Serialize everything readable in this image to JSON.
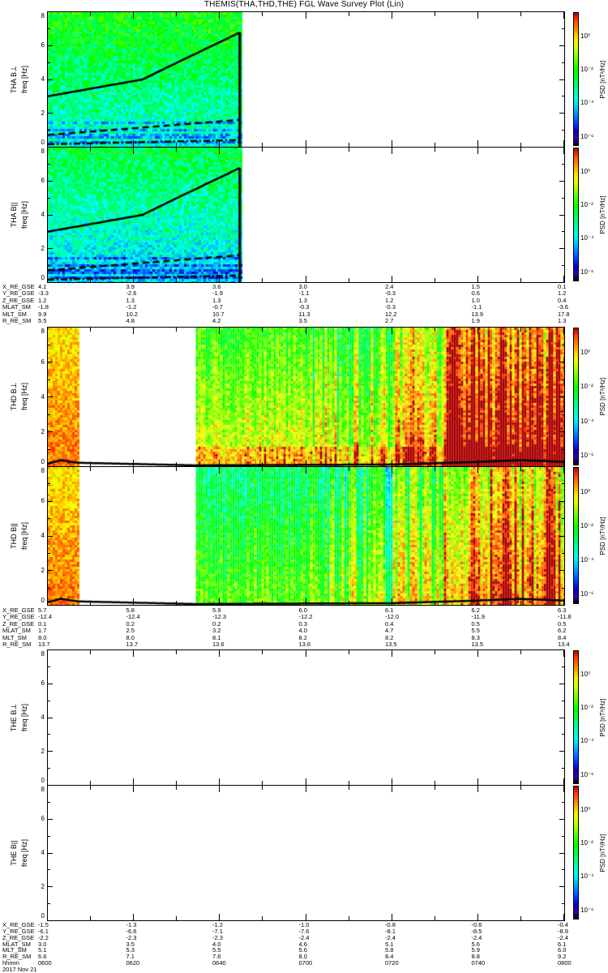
{
  "title": "THEMIS(THA,THD,THE) FGL Wave Survey Plot (Lin)",
  "colorbar": {
    "label": "PSD [nT²/Hz]",
    "tick_labels": [
      "10⁰",
      "10⁻²",
      "10⁻⁴",
      "10⁻⁶"
    ],
    "tick_exponents": [
      0,
      -2,
      -4,
      -6
    ],
    "log_range": [
      -6.6,
      1.5
    ]
  },
  "chart_data": {
    "type": "heatmap",
    "title": "THEMIS(THA,THD,THE) FGL Wave Survey Plot (Lin)",
    "xlabel": "hhmm",
    "x_range_minutes_after_0600": [
      0,
      120
    ],
    "ylim": [
      0,
      8
    ],
    "ytick_labels": [
      "0",
      "2",
      "4",
      "6",
      "8"
    ],
    "panels": [
      {
        "probe": "THA",
        "component": "B⊥",
        "ylabel": "freq [Hz]",
        "label": "THA B⊥",
        "coverage_minutes": [
          [
            0,
            44.7
          ]
        ],
        "style": "tha",
        "lines": {
          "solid": [
            [
              0,
              3.0
            ],
            [
              22,
              4.0
            ],
            [
              30,
              5.0
            ],
            [
              44.7,
              6.8
            ]
          ],
          "dashed": [
            [
              0,
              0.7
            ],
            [
              44.7,
              1.6
            ]
          ],
          "dashdot": [
            [
              0,
              0.15
            ],
            [
              44.7,
              0.4
            ]
          ]
        }
      },
      {
        "probe": "THA",
        "component": "B||",
        "ylabel": "freq [Hz]",
        "label": "THA B||",
        "coverage_minutes": [
          [
            0,
            44.7
          ]
        ],
        "style": "tha",
        "lines": {
          "solid": [
            [
              0,
              3.0
            ],
            [
              22,
              4.0
            ],
            [
              30,
              5.0
            ],
            [
              44.7,
              6.8
            ]
          ],
          "dashed": [
            [
              0,
              0.7
            ],
            [
              44.7,
              1.6
            ]
          ],
          "dashdot": [
            [
              0,
              0.15
            ],
            [
              44.7,
              0.4
            ]
          ]
        }
      },
      {
        "probe": "THD",
        "component": "B⊥",
        "ylabel": "freq [Hz]",
        "label": "THD B⊥",
        "coverage_minutes": [
          [
            0,
            7.1
          ],
          [
            34.4,
            120
          ]
        ],
        "style": "thd",
        "lines": {
          "solid": [
            [
              0,
              0.15
            ],
            [
              3,
              0.35
            ],
            [
              7,
              0.2
            ],
            [
              34.4,
              0.05
            ],
            [
              80,
              0.1
            ],
            [
              100,
              0.25
            ],
            [
              110,
              0.35
            ],
            [
              120,
              0.25
            ]
          ]
        }
      },
      {
        "probe": "THD",
        "component": "B||",
        "ylabel": "freq [Hz]",
        "label": "THD B||",
        "coverage_minutes": [
          [
            0,
            7.1
          ],
          [
            34.4,
            120
          ]
        ],
        "style": "thd2",
        "lines": {
          "solid": [
            [
              0,
              0.15
            ],
            [
              3,
              0.35
            ],
            [
              7,
              0.2
            ],
            [
              34.4,
              0.05
            ],
            [
              80,
              0.1
            ],
            [
              100,
              0.25
            ],
            [
              110,
              0.35
            ],
            [
              120,
              0.25
            ]
          ]
        }
      },
      {
        "probe": "THE",
        "component": "B⊥",
        "ylabel": "freq [Hz]",
        "label": "THE B⊥",
        "coverage_minutes": [],
        "style": "none",
        "lines": {}
      },
      {
        "probe": "THE",
        "component": "B||",
        "ylabel": "freq [Hz]",
        "label": "THE B||",
        "coverage_minutes": [],
        "style": "none",
        "lines": {}
      }
    ]
  },
  "ephemeris": [
    {
      "rows": [
        {
          "label": "X_RE_GSE",
          "values": [
            "4.1",
            "3.9",
            "3.6",
            "3.0",
            "2.4",
            "1.5",
            "0.1"
          ]
        },
        {
          "label": "Y_RE_GSE",
          "values": [
            "-3.3",
            "-2.6",
            "-1.9",
            "-1.1",
            "-0.3",
            "0.6",
            "1.2"
          ]
        },
        {
          "label": "Z_RE_GSE",
          "values": [
            "1.2",
            "1.3",
            "1.3",
            "1.3",
            "1.2",
            "1.0",
            "0.4"
          ]
        },
        {
          "label": "MLAT_SM",
          "values": [
            "-1.8",
            "-1.2",
            "-0.7",
            "-0.3",
            "-0.3",
            "-1.1",
            "-3.6"
          ]
        },
        {
          "label": "MLT_SM",
          "values": [
            "9.9",
            "10.2",
            "10.7",
            "11.3",
            "12.2",
            "13.9",
            "17.8"
          ]
        },
        {
          "label": "R_RE_SM",
          "values": [
            "5.5",
            "4.8",
            "4.2",
            "3.5",
            "2.7",
            "1.9",
            "1.3"
          ]
        }
      ]
    },
    {
      "rows": [
        {
          "label": "X_RE_GSE",
          "values": [
            "5.7",
            "5.8",
            "5.9",
            "6.0",
            "6.1",
            "6.2",
            "6.3"
          ]
        },
        {
          "label": "Y_RE_GSE",
          "values": [
            "-12.4",
            "-12.4",
            "-12.3",
            "-12.2",
            "-12.0",
            "-11.9",
            "-11.8"
          ]
        },
        {
          "label": "Z_RE_GSE",
          "values": [
            "0.1",
            "0.2",
            "0.2",
            "0.3",
            "0.4",
            "0.5",
            "0.5"
          ]
        },
        {
          "label": "MLAT_SM",
          "values": [
            "1.7",
            "2.5",
            "3.2",
            "4.0",
            "4.7",
            "5.5",
            "6.2"
          ]
        },
        {
          "label": "MLT_SM",
          "values": [
            "8.0",
            "8.0",
            "8.1",
            "8.2",
            "8.2",
            "8.3",
            "8.4"
          ]
        },
        {
          "label": "R_RE_SM",
          "values": [
            "13.7",
            "13.7",
            "13.6",
            "13.6",
            "13.5",
            "13.5",
            "13.4"
          ]
        }
      ]
    },
    {
      "rows": [
        {
          "label": "X_RE_GSE",
          "values": [
            "-1.5",
            "-1.3",
            "-1.2",
            "-1.0",
            "-0.8",
            "-0.6",
            "-0.4"
          ]
        },
        {
          "label": "Y_RE_GSE",
          "values": [
            "-6.1",
            "-6.6",
            "-7.1",
            "-7.6",
            "-8.1",
            "-8.5",
            "-8.9"
          ]
        },
        {
          "label": "Z_RE_GSE",
          "values": [
            "-2.2",
            "-2.3",
            "-2.3",
            "-2.4",
            "-2.4",
            "-2.4",
            "-2.4"
          ]
        },
        {
          "label": "MLAT_SM",
          "values": [
            "3.0",
            "3.5",
            "4.0",
            "4.6",
            "5.1",
            "5.6",
            "6.1"
          ]
        },
        {
          "label": "MLT_SM",
          "values": [
            "5.1",
            "5.3",
            "5.5",
            "5.6",
            "5.8",
            "5.9",
            "6.0"
          ]
        },
        {
          "label": "R_RE_SM",
          "values": [
            "6.6",
            "7.1",
            "7.6",
            "8.0",
            "8.4",
            "8.8",
            "9.2"
          ]
        },
        {
          "label": "hhmm",
          "values": [
            "0600",
            "0620",
            "0640",
            "0700",
            "0720",
            "0740",
            "0800"
          ]
        }
      ],
      "date": "2017 Nov 21"
    }
  ]
}
